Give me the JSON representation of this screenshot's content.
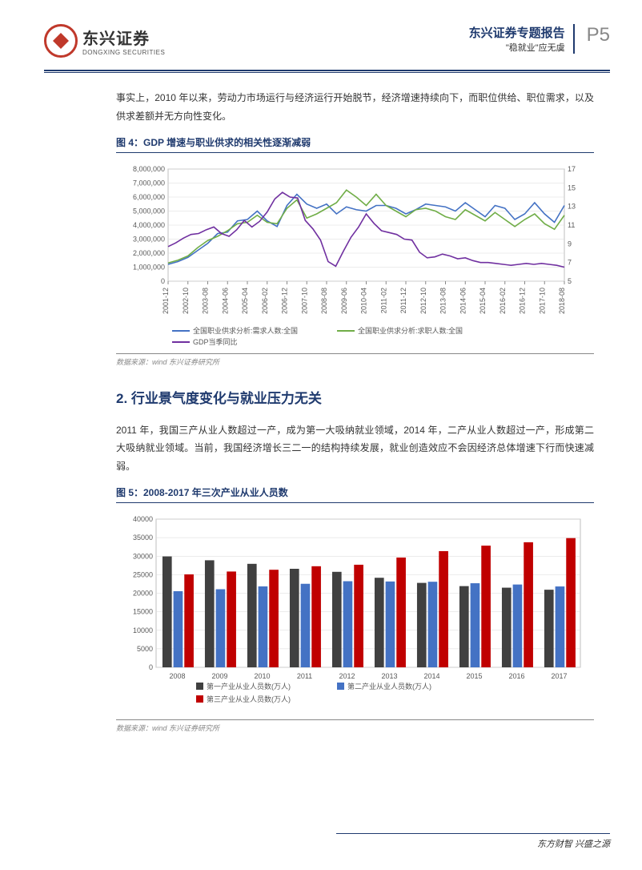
{
  "header": {
    "logo_cn": "东兴证券",
    "logo_en": "DONGXING SECURITIES",
    "report_title": "东兴证券专题报告",
    "report_subtitle": "\"稳就业\"应无虞",
    "page_number": "P5"
  },
  "para1": "事实上，2010 年以来，劳动力市场运行与经济运行开始脱节，经济增速持续向下，而职位供给、职位需求，以及供求差额并无方向性变化。",
  "fig4": {
    "title": "图 4：GDP 增速与职业供求的相关性逐渐减弱",
    "type": "line",
    "y1_ticks": [
      0,
      "1,000,000",
      "2,000,000",
      "3,000,000",
      "4,000,000",
      "5,000,000",
      "6,000,000",
      "7,000,000",
      "8,000,000"
    ],
    "y1_vals": [
      0,
      1000000,
      2000000,
      3000000,
      4000000,
      5000000,
      6000000,
      7000000,
      8000000
    ],
    "y2_ticks": [
      5,
      7,
      9,
      11,
      13,
      15,
      17
    ],
    "x_labels": [
      "2001-12",
      "2002-10",
      "2003-08",
      "2004-06",
      "2005-04",
      "2006-02",
      "2006-12",
      "2007-10",
      "2008-08",
      "2009-06",
      "2010-04",
      "2011-02",
      "2011-12",
      "2012-10",
      "2013-08",
      "2014-06",
      "2015-04",
      "2016-02",
      "2016-12",
      "2017-10",
      "2018-08"
    ],
    "series": [
      {
        "name": "全国职业供求分析:需求人数:全国",
        "color": "#4472c4",
        "data": [
          1200000,
          1400000,
          1700000,
          2200000,
          2700000,
          3400000,
          3500000,
          4300000,
          4400000,
          5000000,
          4300000,
          3900000,
          5400000,
          6200000,
          5500000,
          5200000,
          5500000,
          4800000,
          5300000,
          5100000,
          5000000,
          5400000,
          5400000,
          5200000,
          4800000,
          5100000,
          5500000,
          5400000,
          5300000,
          5000000,
          5600000,
          5100000,
          4600000,
          5400000,
          5200000,
          4400000,
          4800000,
          5600000,
          4800000,
          4200000,
          5400000
        ]
      },
      {
        "name": "全国职业供求分析:求职人数:全国",
        "color": "#70ad47",
        "data": [
          1300000,
          1500000,
          1800000,
          2400000,
          2900000,
          3200000,
          3600000,
          4100000,
          4200000,
          4700000,
          4200000,
          4100000,
          5200000,
          5800000,
          4500000,
          4800000,
          5200000,
          5600000,
          6500000,
          6000000,
          5400000,
          6200000,
          5400000,
          5000000,
          4600000,
          5100000,
          5200000,
          5000000,
          4600000,
          4400000,
          5100000,
          4700000,
          4300000,
          4900000,
          4400000,
          3900000,
          4400000,
          4800000,
          4100000,
          3700000,
          4700000
        ]
      },
      {
        "name": "GDP当季同比",
        "color": "#7030a0",
        "axis": "y2",
        "data": [
          8.7,
          9.1,
          9.6,
          10.0,
          10.1,
          10.5,
          10.8,
          10.1,
          9.8,
          10.5,
          11.5,
          10.8,
          11.4,
          12.4,
          13.8,
          14.5,
          14.0,
          13.9,
          11.5,
          10.6,
          9.4,
          7.1,
          6.6,
          8.2,
          9.7,
          10.8,
          12.2,
          11.2,
          10.4,
          10.2,
          10.0,
          9.5,
          9.4,
          8.1,
          7.5,
          7.6,
          7.9,
          7.7,
          7.4,
          7.5,
          7.2,
          7.0,
          7.0,
          6.9,
          6.8,
          6.7,
          6.8,
          6.9,
          6.8,
          6.9,
          6.8,
          6.7,
          6.5
        ]
      }
    ],
    "grid_color": "#d9d9d9",
    "background_color": "#ffffff",
    "source": "数据来源：wind  东兴证券研究所"
  },
  "section2_heading": "2. 行业景气度变化与就业压力无关",
  "para2": "2011 年，我国三产从业人数超过一产，成为第一大吸纳就业领域，2014 年，二产从业人数超过一产，形成第二大吸纳就业领域。当前，我国经济增长三二一的结构持续发展，就业创造效应不会因经济总体增速下行而快速减弱。",
  "fig5": {
    "title": "图 5：2008-2017 年三次产业从业人员数",
    "type": "bar",
    "y_ticks": [
      0,
      5000,
      10000,
      15000,
      20000,
      25000,
      30000,
      35000,
      40000
    ],
    "x_labels": [
      "2008",
      "2009",
      "2010",
      "2011",
      "2012",
      "2013",
      "2014",
      "2015",
      "2016",
      "2017"
    ],
    "series": [
      {
        "name": "第一产业从业人员数(万人)",
        "color": "#404040",
        "data": [
          29923,
          28890,
          27931,
          26594,
          25773,
          24171,
          22790,
          21919,
          21496,
          20944
        ]
      },
      {
        "name": "第二产业从业人员数(万人)",
        "color": "#4472c4",
        "data": [
          20553,
          21080,
          21842,
          22544,
          23241,
          23170,
          23099,
          22693,
          22350,
          21824
        ]
      },
      {
        "name": "第三产业从业人员数(万人)",
        "color": "#c00000",
        "data": [
          25087,
          25857,
          26332,
          27282,
          27690,
          29636,
          31364,
          32839,
          33757,
          34872
        ]
      }
    ],
    "grid_color": "#d9d9d9",
    "plot_bg": "#ffffff",
    "source": "数据来源：wind 东兴证券研究所"
  },
  "footer": "东方财智 兴盛之源"
}
